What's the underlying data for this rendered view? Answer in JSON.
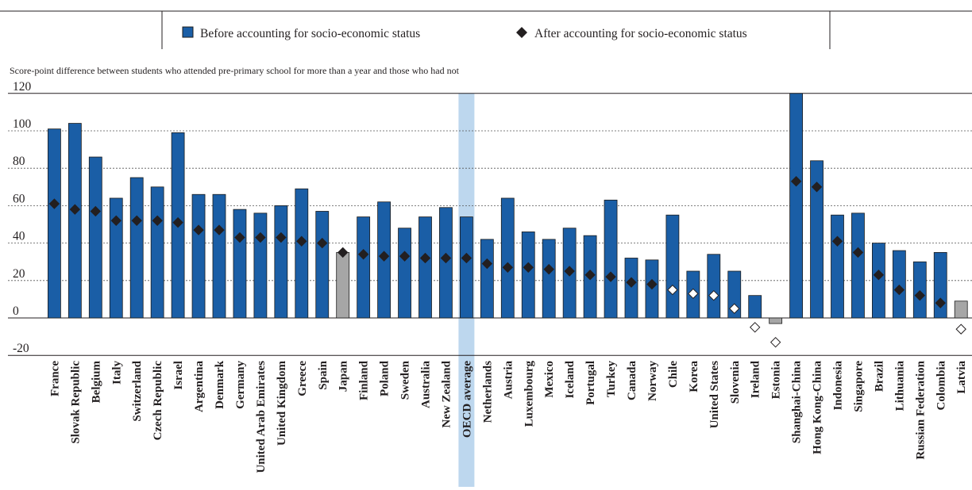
{
  "colors": {
    "bar_significant": "#1a5ea6",
    "bar_not_significant": "#a6a6a6",
    "bar_stroke": "#1c1c1c",
    "marker_significant": "#231f20",
    "marker_not_significant": "#ffffff",
    "oecd_band": "#bdd7ee",
    "grid": "#555555"
  },
  "legend": {
    "before_label": "Before accounting for socio-economic status",
    "after_label": "After accounting for socio-economic status"
  },
  "chart_data": {
    "type": "bar",
    "title": "",
    "ylabel": "Score-point difference between students who attended pre-primary school for more than a year and those who had not",
    "ylim": [
      -20,
      120
    ],
    "yticks": [
      120,
      100,
      80,
      60,
      40,
      20,
      0,
      -20
    ],
    "grid": "horizontal dashed",
    "legend_position": "top",
    "highlight_category": "OECD average",
    "categories": [
      "France",
      "Slovak Republic",
      "Belgium",
      "Italy",
      "Switzerland",
      "Czech Republic",
      "Israel",
      "Argentina",
      "Denmark",
      "Germany",
      "United Arab Emirates",
      "United Kingdom",
      "Greece",
      "Spain",
      "Japan",
      "Finland",
      "Poland",
      "Sweden",
      "Australia",
      "New Zealand",
      "OECD average",
      "Netherlands",
      "Austria",
      "Luxembourg",
      "Mexico",
      "Iceland",
      "Portugal",
      "Turkey",
      "Canada",
      "Norway",
      "Chile",
      "Korea",
      "United States",
      "Slovenia",
      "Ireland",
      "Estonia",
      "Shanghai-China",
      "Hong Kong-China",
      "Indonesia",
      "Singapore",
      "Brazil",
      "Lithuania",
      "Russian Federation",
      "Colombia",
      "Latvia"
    ],
    "series": [
      {
        "name": "Before accounting for socio-economic status",
        "values": [
          101,
          104,
          86,
          64,
          75,
          70,
          99,
          66,
          66,
          58,
          56,
          60,
          69,
          57,
          35,
          54,
          62,
          48,
          54,
          59,
          54,
          42,
          64,
          46,
          42,
          48,
          44,
          63,
          32,
          31,
          55,
          25,
          34,
          25,
          12,
          -3,
          120,
          84,
          55,
          56,
          40,
          36,
          30,
          35,
          9
        ],
        "significant": [
          true,
          true,
          true,
          true,
          true,
          true,
          true,
          true,
          true,
          true,
          true,
          true,
          true,
          true,
          false,
          true,
          true,
          true,
          true,
          true,
          true,
          true,
          true,
          true,
          true,
          true,
          true,
          true,
          true,
          true,
          true,
          true,
          true,
          true,
          true,
          false,
          true,
          true,
          true,
          true,
          true,
          true,
          true,
          true,
          false
        ]
      },
      {
        "name": "After accounting for socio-economic status",
        "values": [
          61,
          58,
          57,
          52,
          52,
          52,
          51,
          47,
          47,
          43,
          43,
          43,
          41,
          40,
          35,
          34,
          33,
          33,
          32,
          32,
          32,
          29,
          27,
          27,
          26,
          25,
          23,
          22,
          19,
          18,
          15,
          13,
          12,
          5,
          -5,
          -13,
          73,
          70,
          41,
          35,
          23,
          15,
          12,
          8,
          -6
        ],
        "significant": [
          true,
          true,
          true,
          true,
          true,
          true,
          true,
          true,
          true,
          true,
          true,
          true,
          true,
          true,
          true,
          true,
          true,
          true,
          true,
          true,
          true,
          true,
          true,
          true,
          true,
          true,
          true,
          true,
          true,
          true,
          false,
          false,
          false,
          false,
          false,
          false,
          true,
          true,
          true,
          true,
          true,
          true,
          true,
          true,
          false
        ]
      }
    ]
  }
}
